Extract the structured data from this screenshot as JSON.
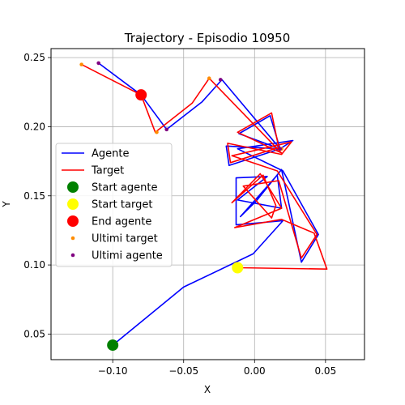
{
  "chart_data": {
    "type": "line",
    "title": "Trajectory - Episodio 10950",
    "xlabel": "X",
    "ylabel": "Y",
    "xlim": [
      -0.1435,
      0.0775
    ],
    "ylim": [
      0.0315,
      0.2565
    ],
    "xticks": [
      -0.1,
      -0.05,
      0.0,
      0.05
    ],
    "xtick_labels": [
      "−0.10",
      "−0.05",
      "0.00",
      "0.05"
    ],
    "yticks": [
      0.05,
      0.1,
      0.15,
      0.2,
      0.25
    ],
    "ytick_labels": [
      "0.05",
      "0.10",
      "0.15",
      "0.20",
      "0.25"
    ],
    "grid": true,
    "legend_position": "center-left",
    "colors": {
      "agente": "#0000ff",
      "target": "#ff0000",
      "start_agente": "#008000",
      "start_target": "#ffff00",
      "end_agente": "#ff0000",
      "ultimi_target": "#ff8c00",
      "ultimi_agente": "#800080"
    },
    "series": [
      {
        "name": "Agente",
        "x": [
          -0.1,
          -0.05,
          -0.001,
          0.02,
          -0.013,
          -0.013,
          0.009,
          -0.012,
          0.019,
          0.016,
          -0.01,
          0.001,
          0.019,
          0.033,
          0.045,
          0.02,
          -0.012,
          0.027,
          0.018,
          -0.02,
          -0.018,
          0.018,
          0.011,
          -0.011,
          0.018,
          -0.023,
          -0.037,
          -0.062,
          -0.08,
          -0.11,
          -0.08
        ],
        "y": [
          0.042,
          0.084,
          0.108,
          0.132,
          0.129,
          0.163,
          0.164,
          0.147,
          0.141,
          0.165,
          0.135,
          0.146,
          0.169,
          0.102,
          0.122,
          0.168,
          0.184,
          0.19,
          0.184,
          0.186,
          0.172,
          0.184,
          0.208,
          0.195,
          0.184,
          0.234,
          0.218,
          0.198,
          0.223,
          0.246,
          0.223
        ]
      },
      {
        "name": "Target",
        "x": [
          -0.012,
          0.051,
          0.042,
          0.019,
          -0.014,
          0.019,
          0.004,
          -0.016,
          0.006,
          0.015,
          0.012,
          -0.008,
          0.017,
          0.033,
          0.044,
          0.016,
          -0.016,
          0.026,
          0.019,
          -0.019,
          -0.017,
          0.017,
          0.012,
          -0.012,
          0.019,
          -0.032,
          -0.044,
          -0.07,
          -0.08,
          -0.122,
          -0.08
        ],
        "y": [
          0.098,
          0.097,
          0.123,
          0.133,
          0.127,
          0.141,
          0.166,
          0.145,
          0.165,
          0.143,
          0.134,
          0.157,
          0.161,
          0.105,
          0.122,
          0.168,
          0.179,
          0.189,
          0.18,
          0.188,
          0.174,
          0.185,
          0.21,
          0.196,
          0.181,
          0.235,
          0.217,
          0.196,
          0.223,
          0.245,
          0.223
        ]
      }
    ],
    "start_agente": [
      -0.1,
      0.042
    ],
    "start_target": [
      -0.012,
      0.098
    ],
    "end_agente": [
      -0.08,
      0.223
    ],
    "ultimi_target": {
      "x": [
        -0.122,
        -0.032,
        -0.069,
        0.019
      ],
      "y": [
        0.245,
        0.235,
        0.196,
        0.184
      ]
    },
    "ultimi_agente": {
      "x": [
        -0.11,
        -0.024,
        -0.062,
        0.018
      ],
      "y": [
        0.246,
        0.234,
        0.198,
        0.184
      ]
    },
    "legend": [
      {
        "label": "Agente",
        "kind": "line",
        "color_key": "agente"
      },
      {
        "label": "Target",
        "kind": "line",
        "color_key": "target"
      },
      {
        "label": "Start agente",
        "kind": "bigdot",
        "color_key": "start_agente"
      },
      {
        "label": "Start target",
        "kind": "bigdot",
        "color_key": "start_target"
      },
      {
        "label": "End agente",
        "kind": "bigdot",
        "color_key": "end_agente"
      },
      {
        "label": "Ultimi target",
        "kind": "smalldot",
        "color_key": "ultimi_target"
      },
      {
        "label": "Ultimi agente",
        "kind": "smalldot",
        "color_key": "ultimi_agente"
      }
    ]
  }
}
